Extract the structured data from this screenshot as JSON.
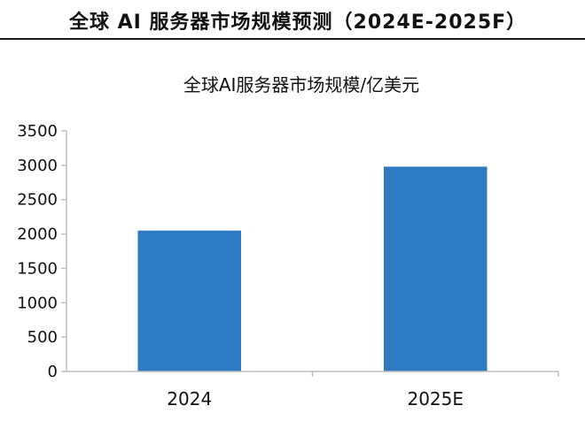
{
  "header": {
    "title": "全球 AI 服务器市场规模预测（2024E-2025F）"
  },
  "chart_data": {
    "type": "bar",
    "title": "全球AI服务器市场规模/亿美元",
    "categories": [
      "2024",
      "2025E"
    ],
    "values": [
      2050,
      2980
    ],
    "ylim": [
      0,
      3500
    ],
    "yticks": [
      0,
      500,
      1000,
      1500,
      2000,
      2500,
      3000,
      3500
    ],
    "xlabel": "",
    "ylabel": "",
    "grid": false,
    "legend": "none",
    "colors": {
      "bar": "#2e7bc4",
      "axis": "#bfbfbf"
    }
  }
}
